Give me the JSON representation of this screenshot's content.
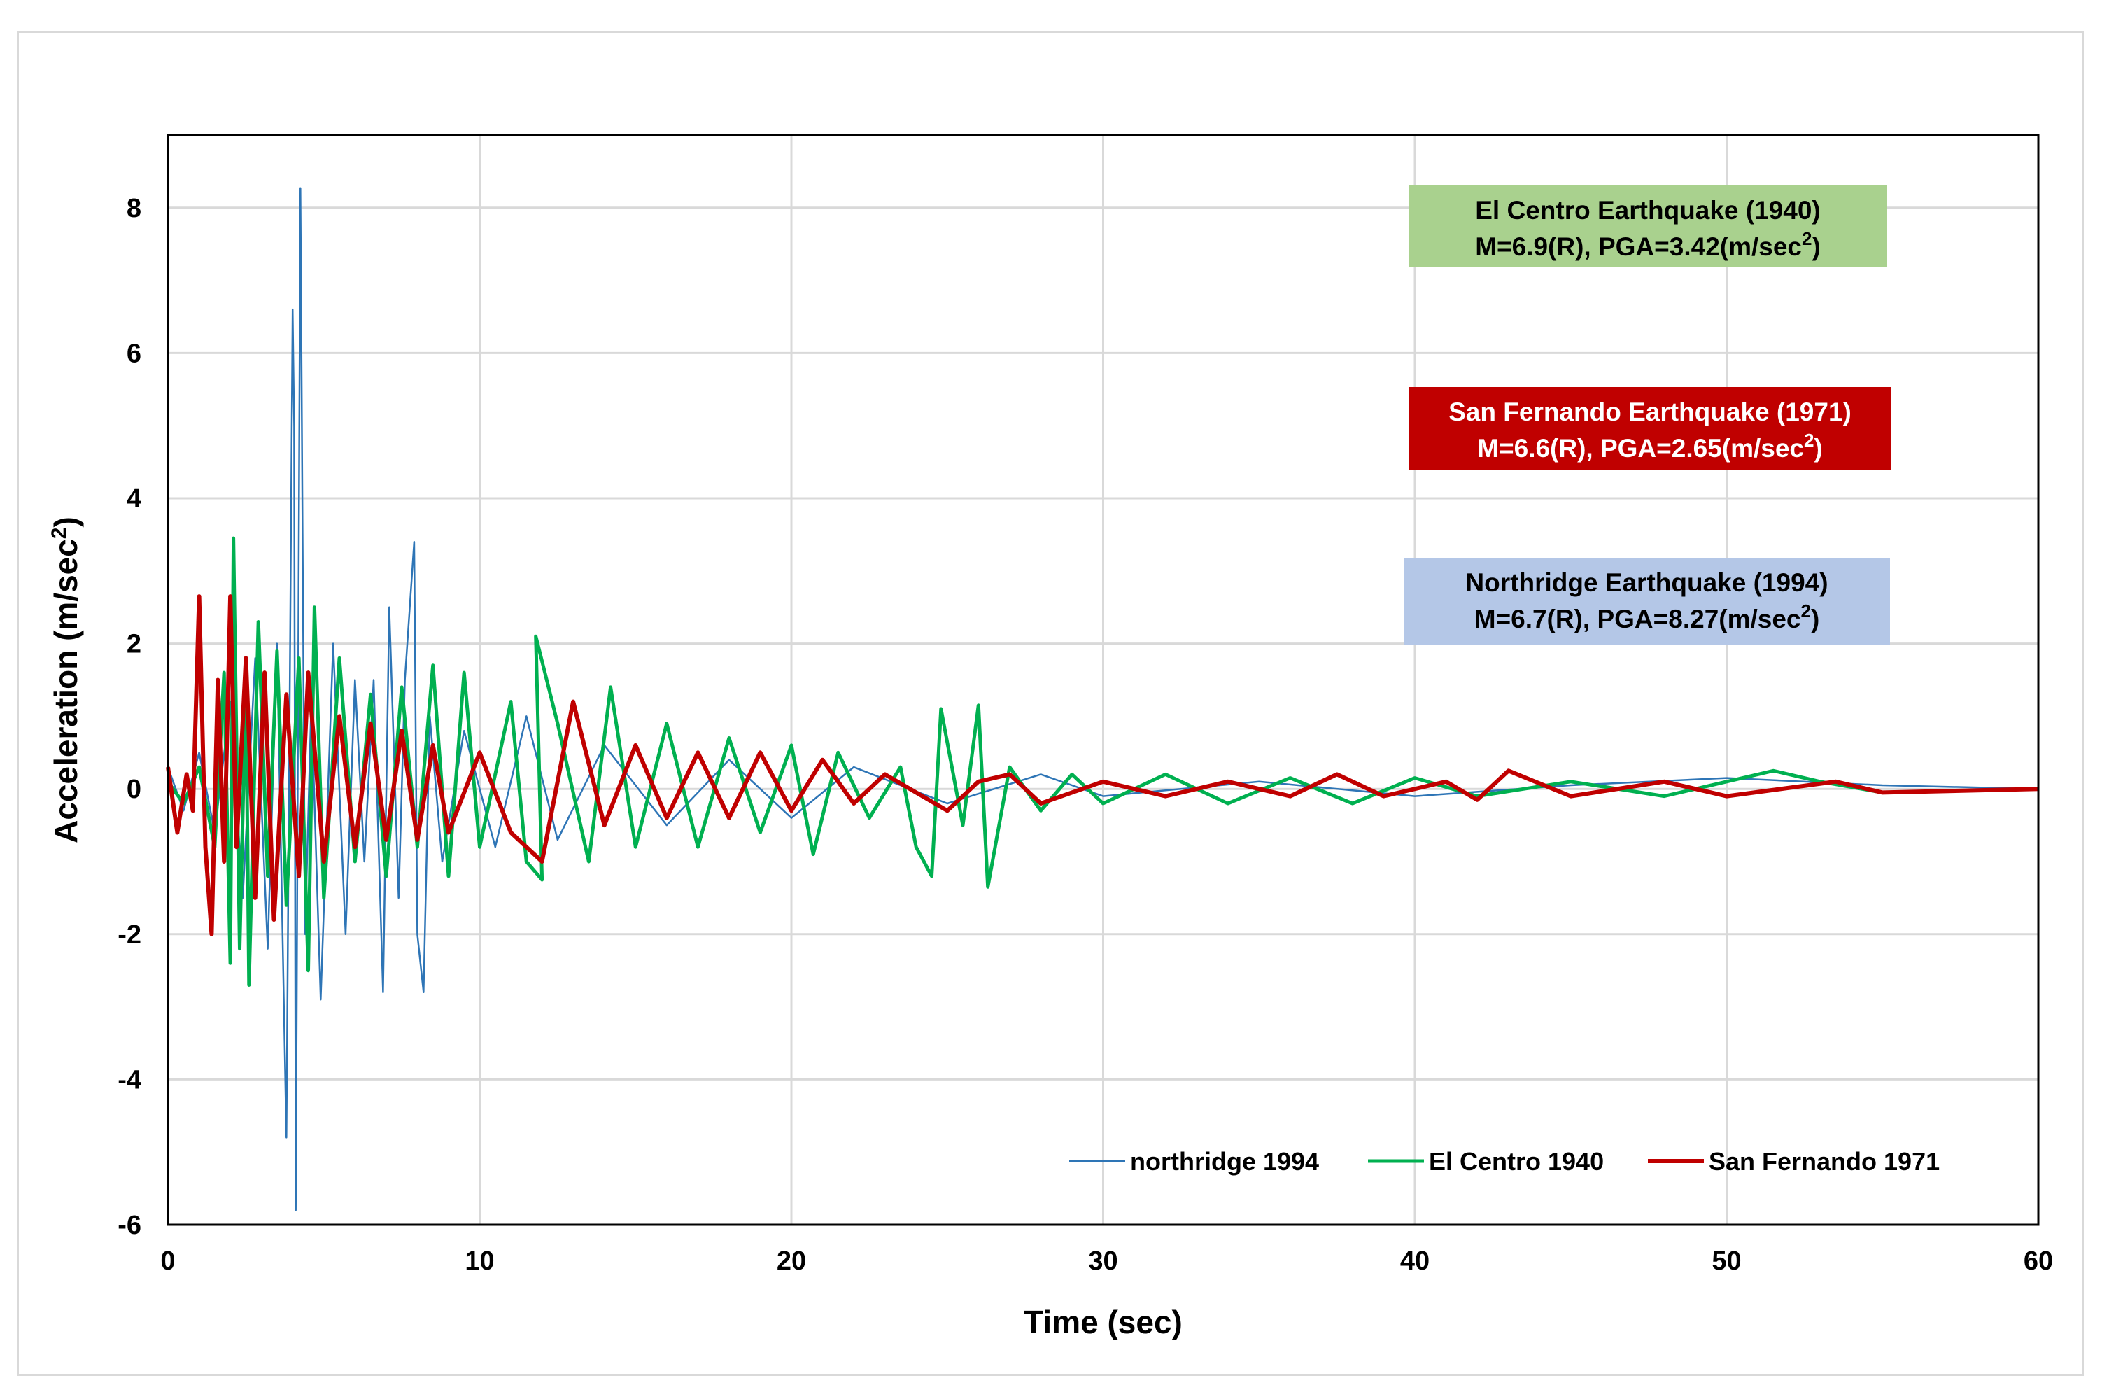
{
  "chart_data": {
    "type": "line",
    "title": "",
    "xlabel": "Time (sec)",
    "ylabel_main": "Acceleration (m/sec",
    "ylabel_sup": "2",
    "ylabel_tail": ")",
    "xlim": [
      0,
      60
    ],
    "ylim": [
      -6,
      9
    ],
    "xticks": [
      0,
      10,
      20,
      30,
      40,
      50,
      60
    ],
    "yticks": [
      -6,
      -4,
      -2,
      0,
      2,
      4,
      6,
      8
    ],
    "grid": true,
    "legend_position": "bottom-right",
    "legend": [
      {
        "label": "northridge 1994",
        "color": "#2e75b6"
      },
      {
        "label": "El Centro 1940",
        "color": "#00b050"
      },
      {
        "label": "San Fernando 1971",
        "color": "#c00000"
      }
    ],
    "series": [
      {
        "name": "northridge 1994",
        "color": "#2e75b6",
        "points": [
          [
            0,
            0.3
          ],
          [
            0.5,
            -0.3
          ],
          [
            1,
            0.5
          ],
          [
            1.5,
            -0.6
          ],
          [
            2,
            1.2
          ],
          [
            2.4,
            -1.5
          ],
          [
            2.8,
            1.8
          ],
          [
            3.2,
            -2.2
          ],
          [
            3.5,
            2.0
          ],
          [
            3.8,
            -4.8
          ],
          [
            4.0,
            6.6
          ],
          [
            4.05,
            5.0
          ],
          [
            4.1,
            -5.8
          ],
          [
            4.25,
            8.27
          ],
          [
            4.4,
            -2.0
          ],
          [
            4.6,
            1.2
          ],
          [
            4.9,
            -2.9
          ],
          [
            5.3,
            2.0
          ],
          [
            5.7,
            -2.0
          ],
          [
            6.0,
            1.5
          ],
          [
            6.3,
            -1.0
          ],
          [
            6.6,
            1.5
          ],
          [
            6.9,
            -2.8
          ],
          [
            7.1,
            2.5
          ],
          [
            7.4,
            -1.5
          ],
          [
            7.6,
            1.5
          ],
          [
            7.9,
            3.4
          ],
          [
            8.0,
            -2.0
          ],
          [
            8.2,
            -2.8
          ],
          [
            8.4,
            1.0
          ],
          [
            8.8,
            -1.0
          ],
          [
            9.5,
            0.8
          ],
          [
            10.5,
            -0.8
          ],
          [
            11.5,
            1.0
          ],
          [
            12.5,
            -0.7
          ],
          [
            14,
            0.6
          ],
          [
            16,
            -0.5
          ],
          [
            18,
            0.4
          ],
          [
            20,
            -0.4
          ],
          [
            22,
            0.3
          ],
          [
            25,
            -0.2
          ],
          [
            28,
            0.2
          ],
          [
            30,
            -0.1
          ],
          [
            35,
            0.1
          ],
          [
            40,
            -0.1
          ],
          [
            45,
            0.05
          ],
          [
            50,
            0.15
          ],
          [
            55,
            0.05
          ],
          [
            60,
            0
          ]
        ]
      },
      {
        "name": "El Centro 1940",
        "color": "#00b050",
        "points": [
          [
            0,
            0.1
          ],
          [
            0.5,
            -0.2
          ],
          [
            1,
            0.3
          ],
          [
            1.5,
            -0.8
          ],
          [
            1.8,
            1.6
          ],
          [
            2.0,
            -2.4
          ],
          [
            2.1,
            3.45
          ],
          [
            2.3,
            -2.2
          ],
          [
            2.5,
            1.5
          ],
          [
            2.6,
            -2.7
          ],
          [
            2.9,
            2.3
          ],
          [
            3.2,
            -1.2
          ],
          [
            3.5,
            1.9
          ],
          [
            3.8,
            -1.6
          ],
          [
            4.2,
            1.8
          ],
          [
            4.5,
            -2.5
          ],
          [
            4.7,
            2.5
          ],
          [
            5.0,
            -1.5
          ],
          [
            5.5,
            1.8
          ],
          [
            6.0,
            -1.0
          ],
          [
            6.5,
            1.3
          ],
          [
            7.0,
            -1.2
          ],
          [
            7.5,
            1.4
          ],
          [
            8.0,
            -0.8
          ],
          [
            8.5,
            1.7
          ],
          [
            9.0,
            -1.2
          ],
          [
            9.5,
            1.6
          ],
          [
            10,
            -0.8
          ],
          [
            11,
            1.2
          ],
          [
            11.5,
            -1.0
          ],
          [
            12,
            -1.25
          ],
          [
            11.8,
            2.1
          ],
          [
            12.5,
            0.9
          ],
          [
            13.5,
            -1.0
          ],
          [
            14.2,
            1.4
          ],
          [
            15,
            -0.8
          ],
          [
            16,
            0.9
          ],
          [
            17,
            -0.8
          ],
          [
            18,
            0.7
          ],
          [
            19,
            -0.6
          ],
          [
            20,
            0.6
          ],
          [
            20.7,
            -0.9
          ],
          [
            21.5,
            0.5
          ],
          [
            22.5,
            -0.4
          ],
          [
            23.5,
            0.3
          ],
          [
            24,
            -0.8
          ],
          [
            24.5,
            -1.2
          ],
          [
            24.8,
            1.1
          ],
          [
            25.5,
            -0.5
          ],
          [
            26,
            1.15
          ],
          [
            26.3,
            -1.35
          ],
          [
            27,
            0.3
          ],
          [
            28,
            -0.3
          ],
          [
            29,
            0.2
          ],
          [
            30,
            -0.2
          ],
          [
            32,
            0.2
          ],
          [
            34,
            -0.2
          ],
          [
            36,
            0.15
          ],
          [
            38,
            -0.2
          ],
          [
            40,
            0.15
          ],
          [
            42,
            -0.1
          ],
          [
            45,
            0.1
          ],
          [
            48,
            -0.1
          ],
          [
            51.5,
            0.25
          ],
          [
            53,
            0.1
          ],
          [
            55,
            -0.05
          ],
          [
            60,
            0
          ]
        ]
      },
      {
        "name": "San Fernando 1971",
        "color": "#c00000",
        "points": [
          [
            0,
            0.3
          ],
          [
            0.3,
            -0.6
          ],
          [
            0.6,
            0.2
          ],
          [
            0.8,
            -0.3
          ],
          [
            1.0,
            2.65
          ],
          [
            1.2,
            -0.8
          ],
          [
            1.4,
            -2.0
          ],
          [
            1.6,
            1.5
          ],
          [
            1.8,
            -1.0
          ],
          [
            2.0,
            2.65
          ],
          [
            2.2,
            -0.8
          ],
          [
            2.5,
            1.8
          ],
          [
            2.8,
            -1.5
          ],
          [
            3.1,
            1.6
          ],
          [
            3.4,
            -1.8
          ],
          [
            3.8,
            1.3
          ],
          [
            4.2,
            -1.2
          ],
          [
            4.5,
            1.6
          ],
          [
            5,
            -1.0
          ],
          [
            5.5,
            1.0
          ],
          [
            6,
            -0.8
          ],
          [
            6.5,
            0.9
          ],
          [
            7,
            -0.7
          ],
          [
            7.5,
            0.8
          ],
          [
            8,
            -0.7
          ],
          [
            8.5,
            0.6
          ],
          [
            9,
            -0.6
          ],
          [
            10,
            0.5
          ],
          [
            11,
            -0.6
          ],
          [
            12,
            -1.0
          ],
          [
            13,
            1.2
          ],
          [
            14,
            -0.5
          ],
          [
            15,
            0.6
          ],
          [
            16,
            -0.4
          ],
          [
            17,
            0.5
          ],
          [
            18,
            -0.4
          ],
          [
            19,
            0.5
          ],
          [
            20,
            -0.3
          ],
          [
            21,
            0.4
          ],
          [
            22,
            -0.2
          ],
          [
            23,
            0.2
          ],
          [
            25,
            -0.3
          ],
          [
            26,
            0.1
          ],
          [
            27,
            0.2
          ],
          [
            28,
            -0.2
          ],
          [
            30,
            0.1
          ],
          [
            32,
            -0.1
          ],
          [
            34,
            0.1
          ],
          [
            36,
            -0.1
          ],
          [
            37.5,
            0.2
          ],
          [
            39,
            -0.1
          ],
          [
            41,
            0.1
          ],
          [
            42,
            -0.15
          ],
          [
            43,
            0.25
          ],
          [
            45,
            -0.1
          ],
          [
            48,
            0.1
          ],
          [
            50,
            -0.1
          ],
          [
            53.5,
            0.1
          ],
          [
            55,
            -0.05
          ],
          [
            60,
            0
          ]
        ]
      }
    ]
  },
  "annotations": [
    {
      "line1": "El Centro Earthquake (1940)",
      "line2": "M=6.9(R), PGA=3.42(m/sec",
      "sup": "2",
      "tail": ")",
      "bg": "#a9d18e",
      "fg": "#000000"
    },
    {
      "line1": "San Fernando Earthquake (1971)",
      "line2": "M=6.6(R), PGA=2.65(m/sec",
      "sup": "2",
      "tail": ")",
      "bg": "#c00000",
      "fg": "#ffffff"
    },
    {
      "line1": "Northridge Earthquake (1994)",
      "line2": "M=6.7(R), PGA=8.27(m/sec",
      "sup": "2",
      "tail": ")",
      "bg": "#b4c7e7",
      "fg": "#000000"
    }
  ]
}
